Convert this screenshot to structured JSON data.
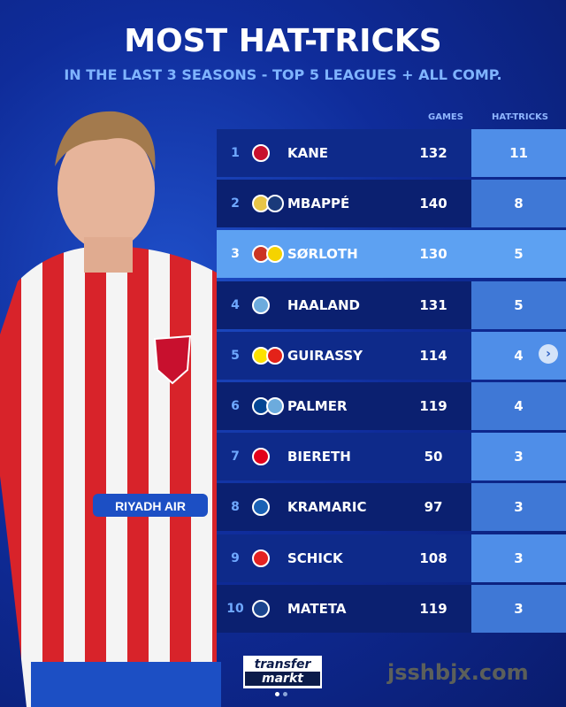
{
  "header": {
    "title": "MOST HAT-TRICKS",
    "subtitle": "IN THE LAST 3 SEASONS - TOP 5 LEAGUES + ALL COMP."
  },
  "columns": {
    "games": "GAMES",
    "hat_tricks": "HAT-TRICKS"
  },
  "rows": [
    {
      "rank": "1",
      "name": "KANE",
      "games": "132",
      "hat_tricks": "11",
      "crests": [
        "#c8102e"
      ]
    },
    {
      "rank": "2",
      "name": "MBAPPÉ",
      "games": "140",
      "hat_tricks": "8",
      "crests": [
        "#e8c547",
        "#1a3a7a"
      ]
    },
    {
      "rank": "3",
      "name": "SØRLOTH",
      "games": "130",
      "hat_tricks": "5",
      "crests": [
        "#cb3524",
        "#f5d300"
      ],
      "highlighted": true
    },
    {
      "rank": "4",
      "name": "HAALAND",
      "games": "131",
      "hat_tricks": "5",
      "crests": [
        "#6cabdd"
      ]
    },
    {
      "rank": "5",
      "name": "GUIRASSY",
      "games": "114",
      "hat_tricks": "4",
      "crests": [
        "#fde100",
        "#e32219"
      ]
    },
    {
      "rank": "6",
      "name": "PALMER",
      "games": "119",
      "hat_tricks": "4",
      "crests": [
        "#034694",
        "#6cabdd"
      ]
    },
    {
      "rank": "7",
      "name": "BIERETH",
      "games": "50",
      "hat_tricks": "3",
      "crests": [
        "#e2001a"
      ]
    },
    {
      "rank": "8",
      "name": "KRAMARIC",
      "games": "97",
      "hat_tricks": "3",
      "crests": [
        "#1961b5"
      ]
    },
    {
      "rank": "9",
      "name": "SCHICK",
      "games": "108",
      "hat_tricks": "3",
      "crests": [
        "#e32221"
      ]
    },
    {
      "rank": "10",
      "name": "MATETA",
      "games": "119",
      "hat_tricks": "3",
      "crests": [
        "#1b458f"
      ]
    }
  ],
  "next_icon": "chevron-right-icon",
  "logo": {
    "line1": "transfer",
    "line2": "markt"
  },
  "watermark": "jsshbjx.com"
}
